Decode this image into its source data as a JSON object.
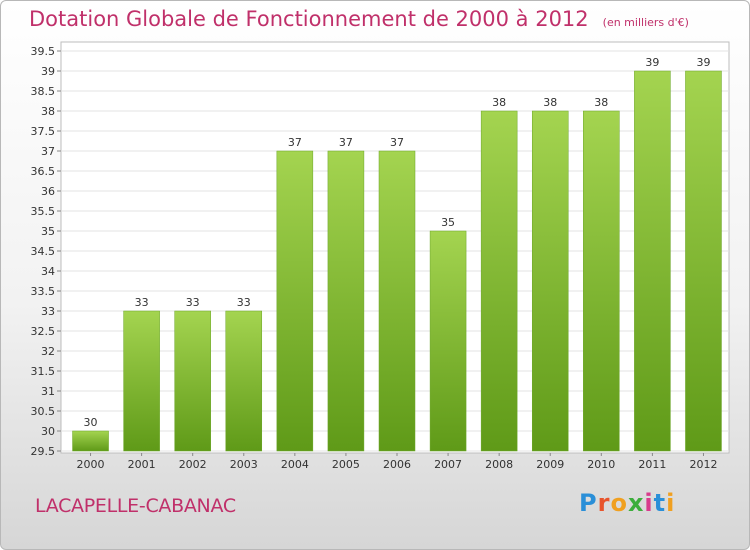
{
  "chart_data": {
    "type": "bar",
    "title": "Dotation Globale de Fonctionnement de 2000 à 2012",
    "subtitle": "(en milliers d'€)",
    "categories": [
      "2000",
      "2001",
      "2002",
      "2003",
      "2004",
      "2005",
      "2006",
      "2007",
      "2008",
      "2009",
      "2010",
      "2011",
      "2012"
    ],
    "values": [
      30,
      33,
      33,
      33,
      37,
      37,
      37,
      35,
      38,
      38,
      38,
      39,
      39
    ],
    "ylim": [
      29.5,
      39.5
    ],
    "yticks": [
      "29.5",
      "30",
      "30.5",
      "31",
      "31.5",
      "32",
      "32.5",
      "33",
      "33.5",
      "34",
      "34.5",
      "35",
      "35.5",
      "36",
      "36.5",
      "37",
      "37.5",
      "38",
      "38.5",
      "39",
      "39.5"
    ],
    "xlabel": "",
    "ylabel": "",
    "grid": true,
    "bar_color": "#7ab830"
  },
  "footer": {
    "place_name": "LACAPELLE-CABANAC",
    "logo_text": "Proxiti"
  }
}
